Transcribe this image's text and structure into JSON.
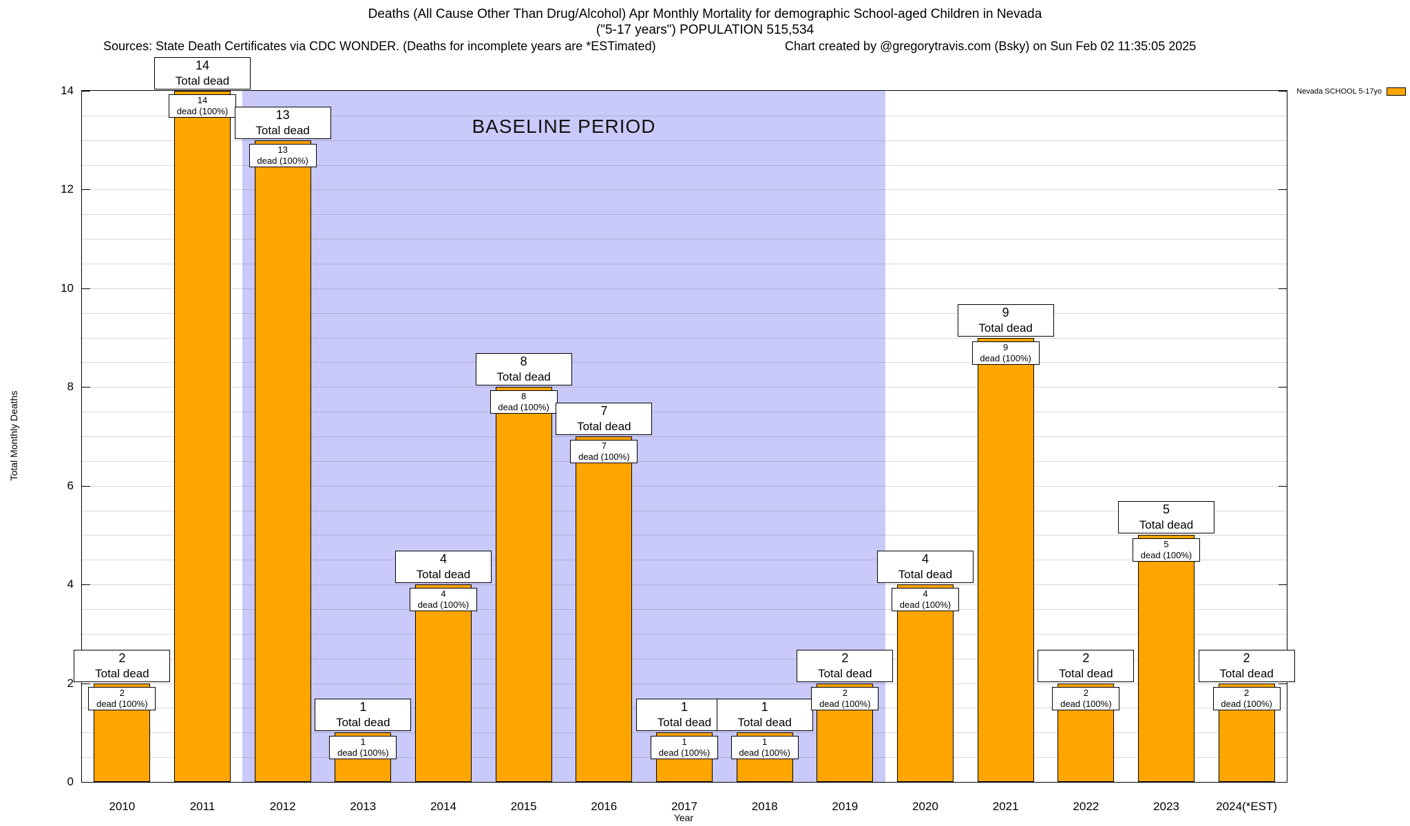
{
  "chart_data": {
    "type": "bar",
    "title_line1": "Deaths (All Cause Other Than Drug/Alcohol) Apr Monthly Mortality for demographic School-aged Children in Nevada",
    "title_line2": "(\"5-17 years\") POPULATION 515,534",
    "sources": "Sources: State Death Certificates via CDC WONDER. (Deaths for incomplete years are *ESTimated)",
    "credit": "Chart created by @gregorytravis.com (Bsky) on Sun Feb 02 11:35:05 2025",
    "xlabel": "Year",
    "ylabel": "Total Monthly Deaths",
    "ylim": [
      0,
      14
    ],
    "yticks": [
      0,
      2,
      4,
      6,
      8,
      10,
      12,
      14
    ],
    "grid_step": 0.5,
    "categories": [
      "2010",
      "2011",
      "2012",
      "2013",
      "2014",
      "2015",
      "2016",
      "2017",
      "2018",
      "2019",
      "2020",
      "2021",
      "2022",
      "2023",
      "2024(*EST)"
    ],
    "values": [
      2,
      14,
      13,
      1,
      4,
      8,
      7,
      1,
      1,
      2,
      4,
      9,
      2,
      5,
      2
    ],
    "bar_color": "#FFA500",
    "bar_border": "#000000",
    "annotation_top_suffix": "Total dead",
    "annotation_inner_suffix": "dead (100%)",
    "baseline": {
      "label": "BASELINE PERIOD",
      "start_category": "2012",
      "end_category": "2019",
      "color": "#c9c9fa"
    },
    "legend": [
      {
        "label": "Nevada SCHOOL 5-17yo",
        "color": "#FFA500"
      }
    ]
  }
}
